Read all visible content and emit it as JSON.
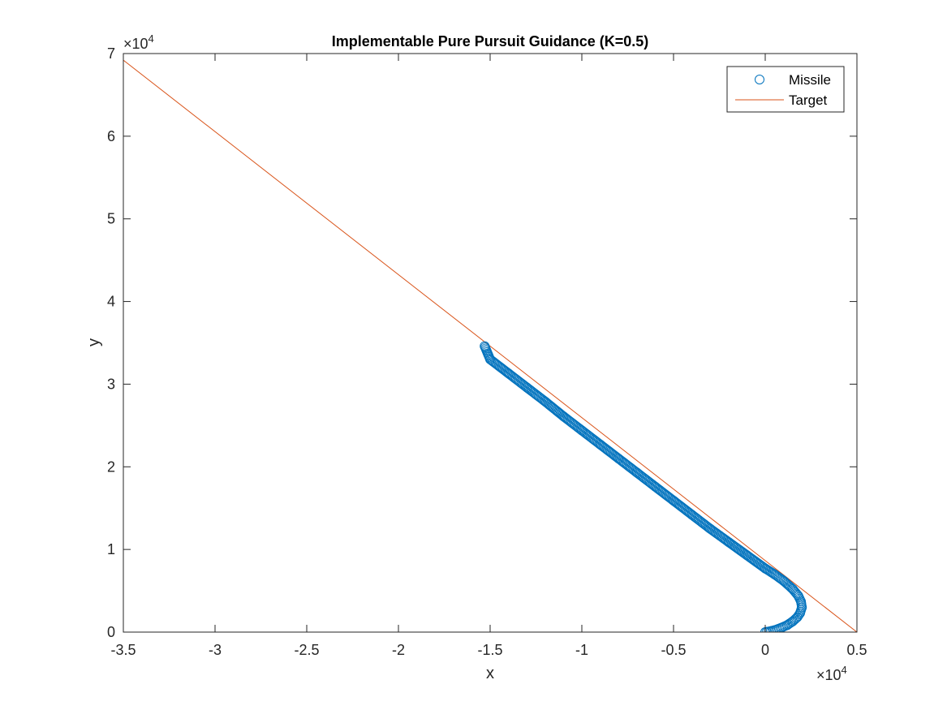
{
  "colors": {
    "missile": "#0072BD",
    "target": "#D95319",
    "axes": "#262626",
    "background": "#ffffff"
  },
  "chart_data": {
    "type": "scatter",
    "title": "Implementable Pure Pursuit Guidance (K=0.5)",
    "xlabel": "x",
    "ylabel": "y",
    "xlim": [
      -35000,
      5000
    ],
    "ylim": [
      0,
      70000
    ],
    "x_ticks": [
      -35000,
      -30000,
      -25000,
      -20000,
      -15000,
      -10000,
      -5000,
      0,
      5000
    ],
    "x_tick_labels": [
      "-3.5",
      "-3",
      "-2.5",
      "-2",
      "-1.5",
      "-1",
      "-0.5",
      "0",
      "0.5"
    ],
    "y_ticks": [
      0,
      10000,
      20000,
      30000,
      40000,
      50000,
      60000,
      70000
    ],
    "y_tick_labels": [
      "0",
      "1",
      "2",
      "3",
      "4",
      "5",
      "6",
      "7"
    ],
    "x_exponent": "4",
    "y_exponent": "4",
    "exponent_base": "×10",
    "grid": false,
    "legend_position": "top-right",
    "series": [
      {
        "name": "Missile",
        "style": "markers",
        "marker": "circle",
        "x": [
          0,
          300,
          600,
          900,
          1200,
          1500,
          1750,
          1900,
          2000,
          1950,
          1800,
          1500,
          1000,
          500,
          0,
          -1000,
          -2000,
          -3000,
          -4000,
          -5000,
          -6000,
          -7000,
          -8000,
          -9000,
          -10000,
          -11000,
          -12000,
          -13000,
          -14000,
          -15000,
          -15300
        ],
        "y": [
          0,
          120,
          300,
          550,
          850,
          1300,
          1800,
          2300,
          3000,
          3700,
          4400,
          5200,
          6200,
          7000,
          7700,
          9300,
          10900,
          12500,
          14200,
          15900,
          17600,
          19300,
          21000,
          22700,
          24400,
          26100,
          27900,
          29600,
          31300,
          33000,
          34600
        ]
      },
      {
        "name": "Target",
        "style": "line",
        "x": [
          5000,
          -35000
        ],
        "y": [
          0,
          69200
        ]
      }
    ]
  }
}
